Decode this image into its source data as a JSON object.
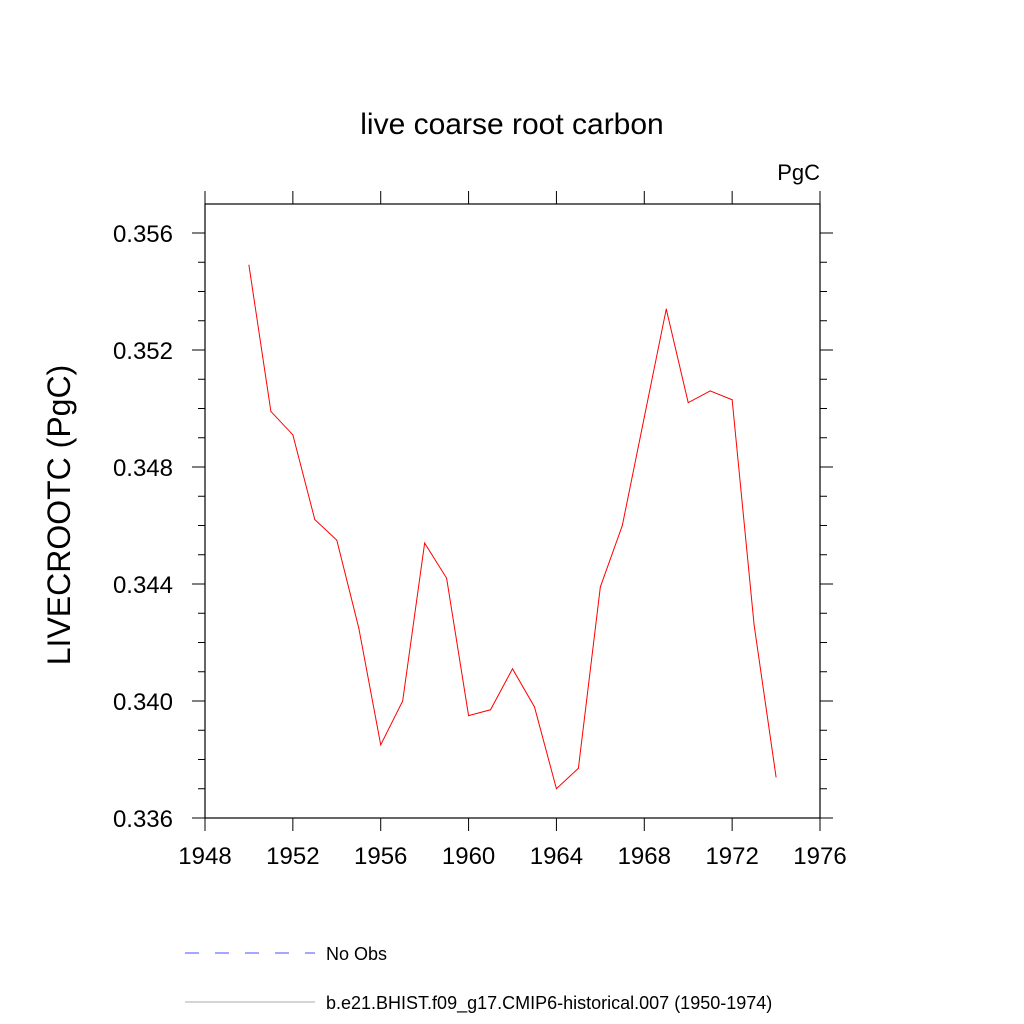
{
  "chart_data": {
    "type": "line",
    "title": "live coarse root carbon",
    "units_label": "PgC",
    "xlabel": "",
    "ylabel": "LIVECROOTC  (PgC)",
    "xlim": [
      1948,
      1976
    ],
    "ylim": [
      0.336,
      0.357
    ],
    "x_ticks": [
      "1948",
      "1952",
      "1956",
      "1960",
      "1964",
      "1968",
      "1972",
      "1976"
    ],
    "y_ticks": [
      "0.336",
      "0.340",
      "0.344",
      "0.348",
      "0.352",
      "0.356"
    ],
    "grid": false,
    "series": [
      {
        "name": "b.e21.BHIST.f09_g17.CMIP6-historical.007 (1950-1974)",
        "color": "#ff0000",
        "x": [
          1950,
          1951,
          1952,
          1953,
          1954,
          1955,
          1956,
          1957,
          1958,
          1959,
          1960,
          1961,
          1962,
          1963,
          1964,
          1965,
          1966,
          1967,
          1968,
          1969,
          1970,
          1971,
          1972,
          1973,
          1974
        ],
        "values": [
          0.3549,
          0.3499,
          0.3491,
          0.3462,
          0.3455,
          0.3425,
          0.3385,
          0.34,
          0.3454,
          0.3442,
          0.3395,
          0.3397,
          0.3411,
          0.3398,
          0.337,
          0.3377,
          0.3439,
          0.346,
          0.3497,
          0.3534,
          0.3502,
          0.3506,
          0.3503,
          0.3426,
          0.3374
        ]
      }
    ],
    "legend": [
      {
        "label": "No Obs",
        "color": "#0000ff",
        "style": "dashed"
      },
      {
        "label": "b.e21.BHIST.f09_g17.CMIP6-historical.007 (1950-1974)",
        "color": "#888888",
        "style": "solid"
      }
    ],
    "legend_placement": "bottom"
  }
}
